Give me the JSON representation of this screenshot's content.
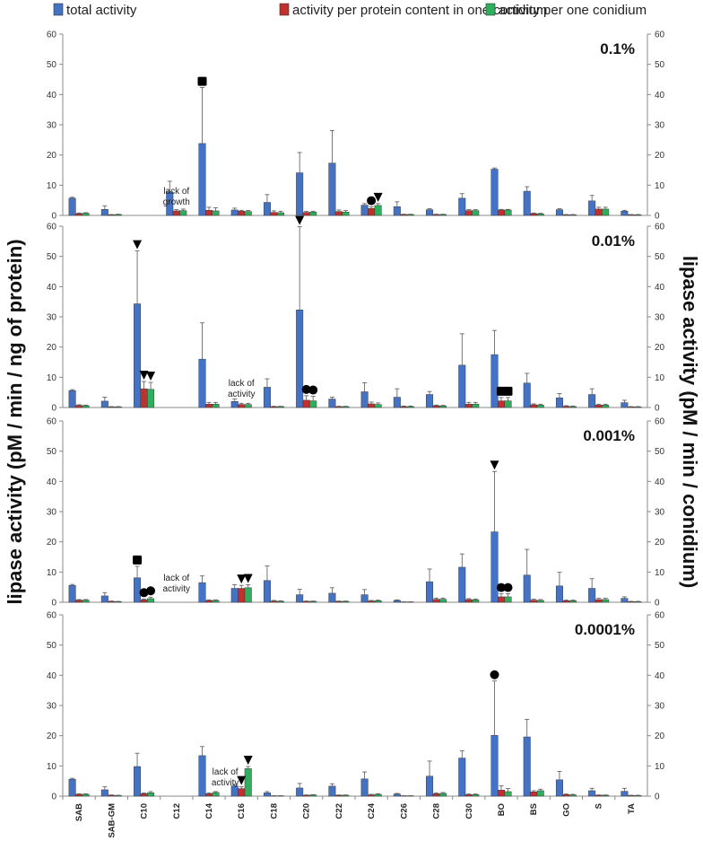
{
  "chart_data": {
    "type": "bar",
    "legend": [
      "total activity",
      "activity per protein content in one conidium",
      "activity per one conidium"
    ],
    "colors": [
      "#4472C4",
      "#C0302E",
      "#2EAF5B"
    ],
    "ylabel_left": "lipase activity (pM / min / ng of protein)",
    "ylabel_right": "lipase activity (pM / min / conidium)",
    "categories": [
      "SAB",
      "SAB-GM",
      "C10",
      "C12",
      "C14",
      "C16",
      "C18",
      "C20",
      "C22",
      "C24",
      "C26",
      "C28",
      "C30",
      "BO",
      "BS",
      "GO",
      "S",
      "TA"
    ],
    "yticks": [
      0,
      10,
      20,
      30,
      40,
      50,
      60
    ],
    "panels": [
      {
        "title": "0.1%",
        "ylim": [
          0,
          60
        ],
        "note": {
          "index": 3,
          "lines": [
            "lack of",
            "growth"
          ]
        },
        "series": [
          {
            "name": "total activity",
            "values": [
              5.7,
              2.0,
              0.0,
              7.8,
              23.8,
              1.8,
              4.3,
              14.1,
              17.3,
              3.4,
              2.9,
              1.9,
              5.7,
              15.3,
              8.0,
              1.9,
              4.8,
              1.4
            ],
            "errors": [
              0.3,
              1.2,
              0,
              3.5,
              18.5,
              0.6,
              2.6,
              6.7,
              10.8,
              0.5,
              1.6,
              0.3,
              1.5,
              0.4,
              1.5,
              0.3,
              1.8,
              0.3
            ]
          },
          {
            "name": "activity per protein content in one conidium",
            "values": [
              0.6,
              0.2,
              0.0,
              1.5,
              1.7,
              1.4,
              1.0,
              1.0,
              1.3,
              2.3,
              0.3,
              0.3,
              1.6,
              1.8,
              0.6,
              0.2,
              2.1,
              0.2
            ],
            "errors": [
              0.2,
              0.1,
              0,
              0.4,
              1.0,
              0.3,
              0.5,
              0.3,
              0.5,
              0.5,
              0.1,
              0.1,
              0.3,
              0.2,
              0.2,
              0.1,
              0.6,
              0.1
            ]
          },
          {
            "name": "activity per one conidium",
            "values": [
              0.7,
              0.3,
              0.0,
              1.6,
              1.5,
              1.3,
              0.9,
              1.1,
              1.1,
              3.3,
              0.3,
              0.3,
              1.6,
              1.8,
              0.5,
              0.2,
              2.1,
              0.2
            ],
            "errors": [
              0.2,
              0.1,
              0,
              0.5,
              1.0,
              0.3,
              0.5,
              0.3,
              0.5,
              0.6,
              0.1,
              0.1,
              0.3,
              0.2,
              0.2,
              0.1,
              0.6,
              0.1
            ]
          }
        ],
        "markers": [
          {
            "index": 4,
            "series": 0,
            "symbol": "square"
          },
          {
            "index": 9,
            "series": 1,
            "symbol": "circle"
          },
          {
            "index": 9,
            "series": 2,
            "symbol": "triangle"
          }
        ]
      },
      {
        "title": "0.01%",
        "ylim": [
          0,
          60
        ],
        "note": {
          "index": 5,
          "lines": [
            "lack of",
            "activity"
          ]
        },
        "series": [
          {
            "name": "total activity",
            "values": [
              5.6,
              2.1,
              34.3,
              0.0,
              16.0,
              2.0,
              6.7,
              32.3,
              2.8,
              5.2,
              3.4,
              4.3,
              14.0,
              17.5,
              8.1,
              3.2,
              4.3,
              1.6
            ],
            "errors": [
              0.3,
              1.3,
              17.5,
              0,
              12.0,
              0.8,
              2.8,
              27.5,
              0.6,
              3.0,
              2.8,
              1.0,
              10.4,
              8.0,
              3.2,
              1.4,
              1.9,
              0.8
            ]
          },
          {
            "name": "activity per protein content in one conidium",
            "values": [
              0.7,
              0.2,
              6.2,
              0.0,
              1.1,
              1.0,
              0.3,
              2.4,
              0.3,
              1.2,
              0.3,
              0.6,
              1.1,
              2.2,
              0.9,
              0.4,
              0.8,
              0.2
            ],
            "errors": [
              0.2,
              0.1,
              2.4,
              0,
              0.6,
              0.4,
              0.1,
              1.5,
              0.1,
              0.6,
              0.2,
              0.2,
              0.6,
              1.1,
              0.3,
              0.2,
              0.3,
              0.1
            ]
          },
          {
            "name": "activity per one conidium",
            "values": [
              0.6,
              0.2,
              6.0,
              0.0,
              1.1,
              1.0,
              0.3,
              2.2,
              0.3,
              1.0,
              0.3,
              0.5,
              1.1,
              2.2,
              0.8,
              0.3,
              0.8,
              0.2
            ],
            "errors": [
              0.2,
              0.1,
              2.3,
              0,
              0.6,
              0.4,
              0.1,
              1.5,
              0.1,
              0.5,
              0.2,
              0.2,
              0.6,
              1.1,
              0.3,
              0.2,
              0.3,
              0.1
            ]
          }
        ],
        "markers": [
          {
            "index": 2,
            "series": 0,
            "symbol": "triangle"
          },
          {
            "index": 2,
            "series": 1,
            "symbol": "triangle"
          },
          {
            "index": 2,
            "series": 2,
            "symbol": "triangle"
          },
          {
            "index": 7,
            "series": 0,
            "symbol": "triangle"
          },
          {
            "index": 7,
            "series": 1,
            "symbol": "circle"
          },
          {
            "index": 7,
            "series": 2,
            "symbol": "circle"
          },
          {
            "index": 13,
            "series": 1,
            "symbol": "square"
          },
          {
            "index": 13,
            "series": 2,
            "symbol": "square"
          }
        ]
      },
      {
        "title": "0.001%",
        "ylim": [
          0,
          60
        ],
        "note": {
          "index": 3,
          "lines": [
            "lack of",
            "activity"
          ]
        },
        "series": [
          {
            "name": "total activity",
            "values": [
              5.6,
              2.1,
              8.1,
              0.0,
              6.5,
              4.6,
              7.2,
              2.5,
              3.0,
              2.5,
              0.6,
              6.8,
              11.6,
              23.3,
              9.0,
              5.4,
              4.6,
              1.3
            ],
            "errors": [
              0.3,
              1.1,
              3.8,
              0,
              2.2,
              1.2,
              4.8,
              1.8,
              1.8,
              1.7,
              0.2,
              4.2,
              4.4,
              20.0,
              8.5,
              4.5,
              3.2,
              0.5
            ]
          },
          {
            "name": "activity per protein content in one conidium",
            "values": [
              0.7,
              0.3,
              0.8,
              0.0,
              0.6,
              4.6,
              0.4,
              0.3,
              0.3,
              0.4,
              0.1,
              1.0,
              0.9,
              1.8,
              0.7,
              0.5,
              0.9,
              0.2
            ],
            "errors": [
              0.2,
              0.1,
              0.3,
              0,
              0.2,
              1.0,
              0.2,
              0.1,
              0.1,
              0.2,
              0.05,
              0.4,
              0.3,
              1.0,
              0.3,
              0.2,
              0.4,
              0.1
            ]
          },
          {
            "name": "activity per one conidium",
            "values": [
              0.7,
              0.2,
              1.2,
              0.0,
              0.6,
              4.8,
              0.3,
              0.3,
              0.3,
              0.5,
              0.1,
              1.0,
              0.8,
              1.8,
              0.6,
              0.5,
              0.9,
              0.2
            ],
            "errors": [
              0.2,
              0.1,
              0.5,
              0,
              0.2,
              1.0,
              0.2,
              0.1,
              0.1,
              0.2,
              0.05,
              0.4,
              0.3,
              1.0,
              0.3,
              0.2,
              0.4,
              0.1
            ]
          }
        ],
        "markers": [
          {
            "index": 2,
            "series": 0,
            "symbol": "square"
          },
          {
            "index": 2,
            "series": 1,
            "symbol": "circle"
          },
          {
            "index": 2,
            "series": 2,
            "symbol": "circle"
          },
          {
            "index": 5,
            "series": 1,
            "symbol": "triangle"
          },
          {
            "index": 5,
            "series": 2,
            "symbol": "triangle"
          },
          {
            "index": 13,
            "series": 0,
            "symbol": "triangle"
          },
          {
            "index": 13,
            "series": 1,
            "symbol": "circle"
          },
          {
            "index": 13,
            "series": 2,
            "symbol": "circle"
          }
        ]
      },
      {
        "title": "0.0001%",
        "ylim": [
          0,
          60
        ],
        "note": {
          "index": 4.5,
          "lines": [
            "lack of",
            "activity"
          ]
        },
        "series": [
          {
            "name": "total activity",
            "values": [
              5.6,
              2.1,
              9.8,
              0.0,
              13.4,
              3.4,
              1.1,
              2.7,
              3.3,
              5.7,
              0.7,
              6.6,
              12.6,
              20.1,
              19.6,
              5.4,
              1.8,
              1.6
            ],
            "errors": [
              0.3,
              1.0,
              4.4,
              0,
              3.0,
              0.5,
              0.4,
              1.5,
              0.8,
              2.3,
              0.2,
              5.0,
              2.4,
              18.0,
              5.8,
              2.8,
              0.8,
              1.0
            ]
          },
          {
            "name": "activity per protein content in one conidium",
            "values": [
              0.6,
              0.3,
              0.8,
              0.0,
              0.8,
              2.5,
              0.1,
              0.3,
              0.3,
              0.4,
              0.1,
              0.8,
              0.5,
              2.0,
              1.4,
              0.5,
              0.3,
              0.2
            ],
            "errors": [
              0.2,
              0.1,
              0.3,
              0,
              0.3,
              0.6,
              0.05,
              0.1,
              0.1,
              0.2,
              0.05,
              0.3,
              0.2,
              1.4,
              0.4,
              0.2,
              0.1,
              0.1
            ]
          },
          {
            "name": "activity per one conidium",
            "values": [
              0.6,
              0.2,
              1.1,
              0.0,
              1.2,
              9.1,
              0.1,
              0.4,
              0.3,
              0.6,
              0.1,
              0.9,
              0.5,
              1.5,
              1.8,
              0.4,
              0.3,
              0.2
            ],
            "errors": [
              0.2,
              0.1,
              0.4,
              0,
              0.3,
              0.7,
              0.05,
              0.1,
              0.1,
              0.2,
              0.05,
              0.3,
              0.2,
              1.0,
              0.5,
              0.2,
              0.1,
              0.1
            ]
          }
        ],
        "markers": [
          {
            "index": 5,
            "series": 1,
            "symbol": "triangle"
          },
          {
            "index": 5,
            "series": 2,
            "symbol": "triangle"
          },
          {
            "index": 13,
            "series": 0,
            "symbol": "circle"
          }
        ]
      }
    ]
  }
}
